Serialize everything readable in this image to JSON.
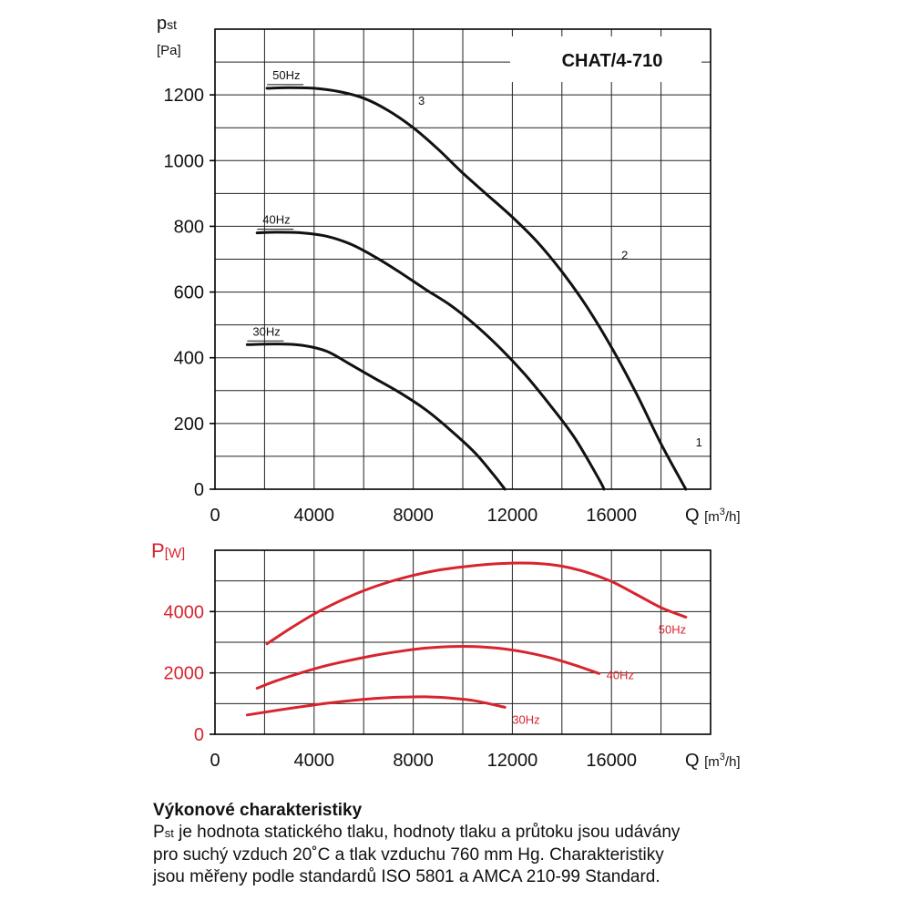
{
  "chart_data": [
    {
      "type": "line",
      "title": "CHAT/4-710",
      "ylabel_symbol": "p",
      "ylabel_subscript": "st",
      "ylabel_unit": "[Pa]",
      "xlabel_symbol": "Q",
      "xlabel_unit_prefix": "[m",
      "xlabel_unit_exp": "3",
      "xlabel_unit_suffix": "/h]",
      "xlim": [
        0,
        20000
      ],
      "ylim": [
        0,
        1400
      ],
      "x_ticks": [
        0,
        4000,
        8000,
        12000,
        16000
      ],
      "x_tick_labels": [
        "0",
        "4000",
        "8000",
        "12000",
        "16000"
      ],
      "y_ticks": [
        0,
        200,
        400,
        600,
        800,
        1000,
        1200
      ],
      "y_tick_labels": [
        "0",
        "200",
        "400",
        "600",
        "800",
        "1000",
        "1200"
      ],
      "x_grid": [
        0,
        2000,
        4000,
        6000,
        8000,
        10000,
        12000,
        14000,
        16000,
        18000,
        20000
      ],
      "y_grid": [
        0,
        100,
        200,
        300,
        400,
        500,
        600,
        700,
        800,
        900,
        1000,
        1100,
        1200,
        1300,
        1400
      ],
      "grid": true,
      "line_color": "#111111",
      "series": [
        {
          "name": "50Hz",
          "points": [
            [
              2100,
              1220
            ],
            [
              3000,
              1222
            ],
            [
              4000,
              1220
            ],
            [
              5000,
              1210
            ],
            [
              6000,
              1190
            ],
            [
              7000,
              1152
            ],
            [
              8000,
              1100
            ],
            [
              9000,
              1035
            ],
            [
              10000,
              962
            ],
            [
              11000,
              895
            ],
            [
              12000,
              828
            ],
            [
              13000,
              753
            ],
            [
              14000,
              662
            ],
            [
              15000,
              556
            ],
            [
              16000,
              432
            ],
            [
              17000,
              292
            ],
            [
              18000,
              138
            ],
            [
              19000,
              0
            ]
          ]
        },
        {
          "name": "40Hz",
          "points": [
            [
              1700,
              780
            ],
            [
              2500,
              782
            ],
            [
              3500,
              780
            ],
            [
              4500,
              770
            ],
            [
              5500,
              745
            ],
            [
              6500,
              705
            ],
            [
              7500,
              658
            ],
            [
              8500,
              608
            ],
            [
              9500,
              560
            ],
            [
              10500,
              500
            ],
            [
              11500,
              430
            ],
            [
              12500,
              350
            ],
            [
              13500,
              258
            ],
            [
              14500,
              158
            ],
            [
              15500,
              30
            ],
            [
              15700,
              0
            ]
          ]
        },
        {
          "name": "30Hz",
          "points": [
            [
              1300,
              440
            ],
            [
              2500,
              442
            ],
            [
              3500,
              438
            ],
            [
              4500,
              420
            ],
            [
              5500,
              378
            ],
            [
              6500,
              335
            ],
            [
              7500,
              292
            ],
            [
              8500,
              242
            ],
            [
              9500,
              180
            ],
            [
              10500,
              110
            ],
            [
              11200,
              48
            ],
            [
              11700,
              0
            ]
          ]
        }
      ],
      "annotations": [
        "3",
        "2",
        "1"
      ]
    },
    {
      "type": "line",
      "ylabel_symbol": "P",
      "ylabel_unit": "[W]",
      "xlabel_symbol": "Q",
      "xlabel_unit_prefix": "[m",
      "xlabel_unit_exp": "3",
      "xlabel_unit_suffix": "/h]",
      "xlim": [
        0,
        20000
      ],
      "ylim": [
        0,
        6000
      ],
      "x_ticks": [
        0,
        4000,
        8000,
        12000,
        16000
      ],
      "x_tick_labels": [
        "0",
        "4000",
        "8000",
        "12000",
        "16000"
      ],
      "y_ticks": [
        0,
        2000,
        4000
      ],
      "y_tick_labels": [
        "0",
        "2000",
        "4000"
      ],
      "x_grid": [
        0,
        2000,
        4000,
        6000,
        8000,
        10000,
        12000,
        14000,
        16000,
        18000,
        20000
      ],
      "y_grid": [
        0,
        1000,
        2000,
        3000,
        4000,
        5000,
        6000
      ],
      "grid": true,
      "line_color": "#d8242e",
      "series": [
        {
          "name": "50Hz",
          "points": [
            [
              2100,
              2950
            ],
            [
              3000,
              3430
            ],
            [
              4000,
              3920
            ],
            [
              5000,
              4330
            ],
            [
              6000,
              4680
            ],
            [
              7000,
              4960
            ],
            [
              8000,
              5180
            ],
            [
              9000,
              5350
            ],
            [
              10000,
              5460
            ],
            [
              11000,
              5540
            ],
            [
              12000,
              5580
            ],
            [
              13000,
              5570
            ],
            [
              14000,
              5480
            ],
            [
              15000,
              5280
            ],
            [
              16000,
              4980
            ],
            [
              17000,
              4560
            ],
            [
              18000,
              4130
            ],
            [
              19000,
              3820
            ]
          ]
        },
        {
          "name": "40Hz",
          "points": [
            [
              1700,
              1500
            ],
            [
              2500,
              1750
            ],
            [
              3500,
              2010
            ],
            [
              4500,
              2240
            ],
            [
              5500,
              2420
            ],
            [
              6500,
              2580
            ],
            [
              7500,
              2710
            ],
            [
              8500,
              2810
            ],
            [
              9500,
              2860
            ],
            [
              10500,
              2860
            ],
            [
              11500,
              2800
            ],
            [
              12500,
              2680
            ],
            [
              13500,
              2500
            ],
            [
              14500,
              2260
            ],
            [
              15500,
              1980
            ]
          ]
        },
        {
          "name": "30Hz",
          "points": [
            [
              1300,
              630
            ],
            [
              2500,
              780
            ],
            [
              3500,
              900
            ],
            [
              4500,
              1010
            ],
            [
              5500,
              1100
            ],
            [
              6500,
              1170
            ],
            [
              7500,
              1210
            ],
            [
              8500,
              1220
            ],
            [
              9500,
              1180
            ],
            [
              10500,
              1090
            ],
            [
              11700,
              880
            ]
          ]
        }
      ]
    }
  ],
  "description": {
    "title": "Výkonové charakteristiky",
    "pst_symbol": "P",
    "pst_subscript": "st",
    "line1": " je hodnota statického tlaku, hodnoty tlaku a průtoku jsou udávány",
    "line2": "pro suchý vzduch 20˚C a tlak vzduchu 760 mm Hg. Charakteristiky",
    "line3": "jsou měřeny podle standardů ISO 5801 a AMCA 210-99 Standard."
  }
}
